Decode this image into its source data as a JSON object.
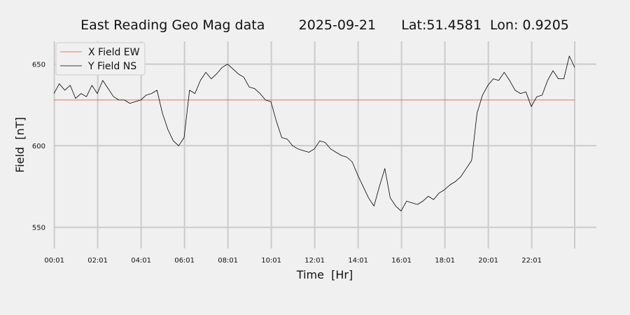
{
  "chart_data": {
    "type": "line",
    "title": "East Reading Geo Mag data        2025-09-21      Lat:51.4581  Lon: 0.9205",
    "xlabel": "Time  [Hr]",
    "ylabel": "Field  [nT]",
    "xlim": [
      0.0,
      25.0
    ],
    "ylim": [
      537,
      664
    ],
    "x_ticks": [
      {
        "pos": 0.02,
        "label": "00:01"
      },
      {
        "pos": 2.02,
        "label": "02:01"
      },
      {
        "pos": 4.02,
        "label": "04:01"
      },
      {
        "pos": 6.02,
        "label": "06:01"
      },
      {
        "pos": 8.02,
        "label": "08:01"
      },
      {
        "pos": 10.02,
        "label": "10:01"
      },
      {
        "pos": 12.02,
        "label": "12:01"
      },
      {
        "pos": 14.02,
        "label": "14:01"
      },
      {
        "pos": 16.02,
        "label": "16:01"
      },
      {
        "pos": 18.02,
        "label": "18:01"
      },
      {
        "pos": 20.02,
        "label": "20:01"
      },
      {
        "pos": 22.02,
        "label": "22:01"
      },
      {
        "pos": 24.0,
        "label": ""
      }
    ],
    "y_ticks": [
      550,
      600,
      650
    ],
    "grid": true,
    "legend": "top-left",
    "series": [
      {
        "name": "X Field EW",
        "color": "#e24a33",
        "x": [
          0.0,
          24.0
        ],
        "y": [
          628,
          628
        ]
      },
      {
        "name": "Y Field NS",
        "color": "#000000",
        "x": [
          0.0,
          0.25,
          0.5,
          0.75,
          1.0,
          1.25,
          1.5,
          1.75,
          2.0,
          2.25,
          2.5,
          2.75,
          3.0,
          3.25,
          3.5,
          3.75,
          4.0,
          4.25,
          4.5,
          4.75,
          5.0,
          5.25,
          5.5,
          5.75,
          6.0,
          6.25,
          6.5,
          6.75,
          7.0,
          7.25,
          7.5,
          7.75,
          8.0,
          8.25,
          8.5,
          8.75,
          9.0,
          9.25,
          9.5,
          9.75,
          10.0,
          10.25,
          10.5,
          10.75,
          11.0,
          11.25,
          11.5,
          11.75,
          12.0,
          12.25,
          12.5,
          12.75,
          13.0,
          13.25,
          13.5,
          13.75,
          14.0,
          14.25,
          14.5,
          14.75,
          15.0,
          15.25,
          15.5,
          15.75,
          16.0,
          16.25,
          16.5,
          16.75,
          17.0,
          17.25,
          17.5,
          17.75,
          18.0,
          18.25,
          18.5,
          18.75,
          19.0,
          19.25,
          19.5,
          19.75,
          20.0,
          20.25,
          20.5,
          20.75,
          21.0,
          21.25,
          21.5,
          21.75,
          22.0,
          22.25,
          22.5,
          22.75,
          23.0,
          23.25,
          23.5,
          23.75,
          24.0
        ],
        "y": [
          632,
          638,
          634,
          637,
          629,
          632,
          630,
          637,
          632,
          640,
          635,
          630,
          628,
          628,
          626,
          627,
          628,
          631,
          632,
          634,
          620,
          610,
          603,
          600,
          605,
          634,
          632,
          640,
          645,
          641,
          644,
          648,
          650,
          647,
          644,
          642,
          636,
          635,
          632,
          628,
          627,
          615,
          605,
          604,
          600,
          598,
          597,
          596,
          598,
          603,
          602,
          598,
          596,
          594,
          593,
          590,
          582,
          575,
          568,
          563,
          575,
          586,
          568,
          563,
          560,
          566,
          565,
          564,
          566,
          569,
          567,
          571,
          573,
          576,
          578,
          581,
          586,
          591,
          620,
          631,
          637,
          641,
          640,
          645,
          640,
          634,
          632,
          633,
          624,
          630,
          631,
          640,
          646,
          641,
          641,
          655,
          648
        ]
      }
    ]
  }
}
